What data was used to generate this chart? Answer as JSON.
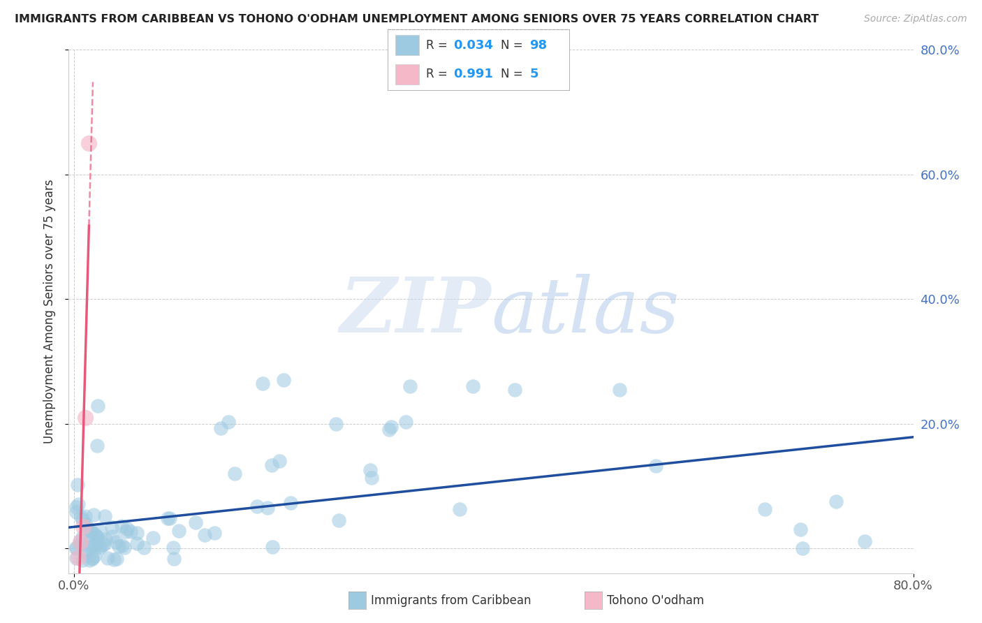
{
  "title": "IMMIGRANTS FROM CARIBBEAN VS TOHONO O'ODHAM UNEMPLOYMENT AMONG SENIORS OVER 75 YEARS CORRELATION CHART",
  "source": "Source: ZipAtlas.com",
  "ylabel": "Unemployment Among Seniors over 75 years",
  "xlim": [
    -0.005,
    0.8
  ],
  "ylim": [
    -0.04,
    0.8
  ],
  "xtick_positions": [
    0.0,
    0.8
  ],
  "xticklabels": [
    "0.0%",
    "80.0%"
  ],
  "ytick_positions": [
    0.0,
    0.2,
    0.4,
    0.6,
    0.8
  ],
  "yticklabels_left": [
    "",
    "",
    "",
    "",
    ""
  ],
  "yticklabels_right": [
    "",
    "20.0%",
    "40.0%",
    "60.0%",
    "80.0%"
  ],
  "blue_color": "#9ecae1",
  "pink_color": "#f4b8c8",
  "blue_line_color": "#1f4e9e",
  "pink_line_color": "#e8587a",
  "watermark_zip": "ZIP",
  "watermark_atlas": "atlas",
  "background_color": "#ffffff",
  "grid_color": "#cccccc",
  "legend_r1": "0.034",
  "legend_n1": "98",
  "legend_r2": "0.991",
  "legend_n2": "5",
  "right_tick_color": "#4472c4",
  "tick_label_color": "#555555"
}
